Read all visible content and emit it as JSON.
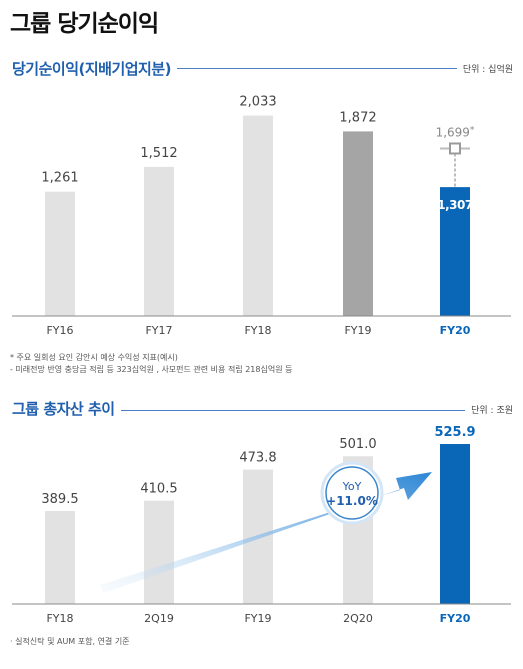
{
  "page_title": "그룹 당기순이익",
  "colors": {
    "accent": "#0a67b8",
    "bar_grey": "#e2e2e2",
    "bar_dark": "#a5a5a5",
    "title_blue": "#1f5fae"
  },
  "chart_data": [
    {
      "type": "bar",
      "title": "당기순이익(지배기업지분)",
      "unit_label": "단위 : 십억원",
      "categories": [
        "FY16",
        "FY17",
        "FY18",
        "FY19",
        "FY20"
      ],
      "values": [
        1261,
        1512,
        2033,
        1872,
        1307
      ],
      "value_labels": [
        "1,261",
        "1,512",
        "2,033",
        "1,872",
        "1,307"
      ],
      "highlight_index": 4,
      "adjusted": {
        "index": 4,
        "value": 1699,
        "label": "1,699",
        "marker": "*"
      },
      "ylim": [
        0,
        2150
      ],
      "notes": [
        "*  주요 일회성 요인 감안시 예상 수익성 지표(예시)",
        "   - 미래전망 반영 충당금 적립 등 323십억원 , 사모펀드 관련 비용 적립 218십억원 등"
      ]
    },
    {
      "type": "bar",
      "title": "그룹 총자산 추이",
      "unit_label": "단위 : 조원",
      "categories": [
        "FY18",
        "2Q19",
        "FY19",
        "2Q20",
        "FY20"
      ],
      "values": [
        389.5,
        410.5,
        473.8,
        501.0,
        525.9
      ],
      "value_labels": [
        "389.5",
        "410.5",
        "473.8",
        "501.0",
        "525.9"
      ],
      "highlight_index": 4,
      "ylim": [
        200,
        530
      ],
      "growth_badge": {
        "line1": "YoY",
        "line2": "+11.0%"
      },
      "notes": [
        "· 실적신탁 및 AUM 포함, 연결 기준"
      ]
    }
  ]
}
